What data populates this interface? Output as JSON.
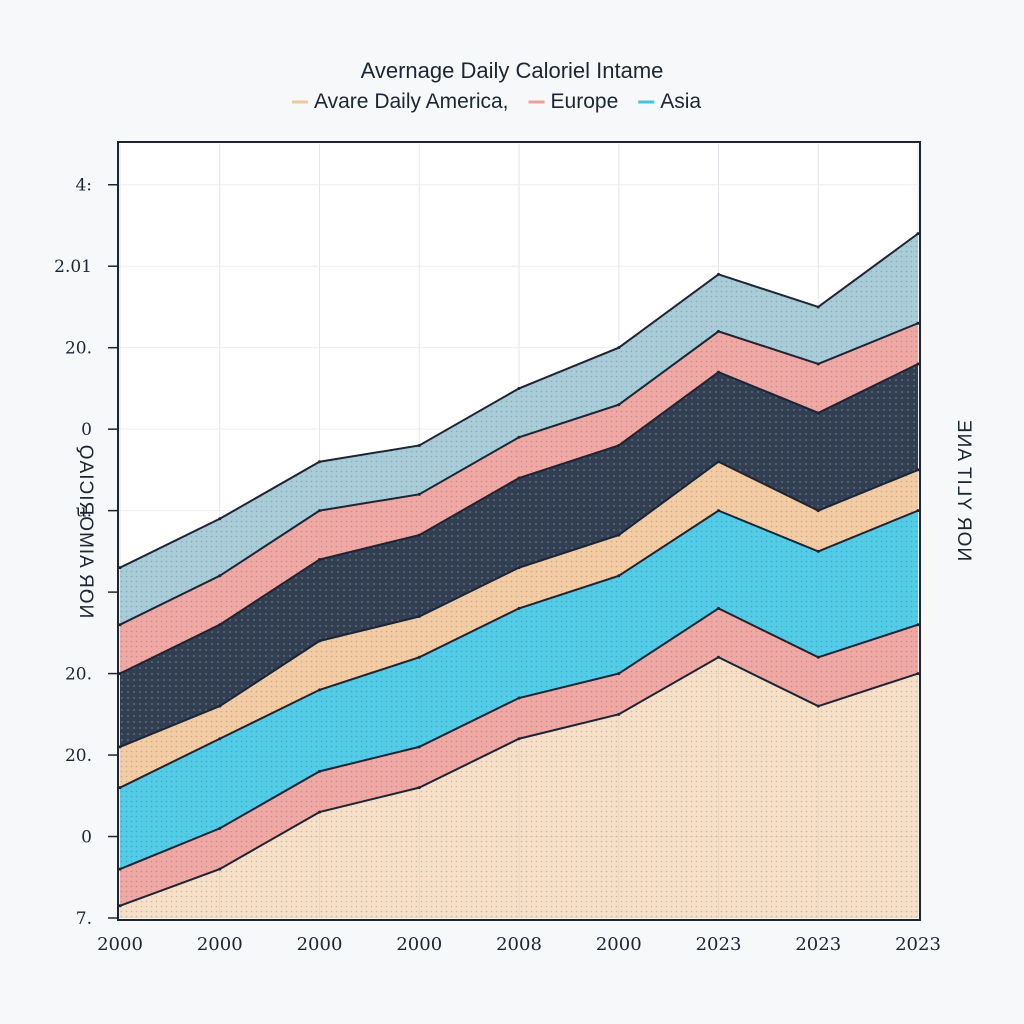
{
  "chart_data": {
    "type": "area",
    "title": "Avernage Daily Caloriel Intame",
    "legend": {
      "placement": "top",
      "entries": [
        {
          "label": "Avare Daily America,",
          "color": "#f2c79a"
        },
        {
          "label": "Europe",
          "color": "#ee9f9a"
        },
        {
          "label": "Asia",
          "color": "#3fc6e4"
        }
      ]
    },
    "ylabel": "NOR AIMORICIAQ",
    "ylabel_right": "NOR YLIT ANE",
    "y_tick_labels": [
      "4:",
      "2.01",
      "20.",
      "0",
      "u.",
      "·",
      "20.",
      "20.",
      "0",
      "7."
    ],
    "y_tick_values": [
      9,
      8,
      7,
      6,
      5,
      4,
      3,
      2,
      1,
      0
    ],
    "ylim": [
      0,
      9.5
    ],
    "x_tick_labels": [
      "2000",
      "2000",
      "2000",
      "2000",
      "2008",
      "2000",
      "2023",
      "2023",
      "2023"
    ],
    "x": [
      0,
      1,
      2,
      3,
      4,
      5,
      6,
      7,
      8
    ],
    "grid": true,
    "series": [
      {
        "color": "#f2c79a",
        "values": [
          0.15,
          0.6,
          1.3,
          1.6,
          2.2,
          2.5,
          3.2,
          2.6,
          3.0
        ]
      },
      {
        "color": "#ee9f9a",
        "values": [
          0.6,
          1.1,
          1.8,
          2.1,
          2.7,
          3.0,
          3.8,
          3.2,
          3.6
        ]
      },
      {
        "color": "#3fc6e4",
        "values": [
          1.6,
          2.2,
          2.8,
          3.2,
          3.8,
          4.2,
          5.0,
          4.5,
          5.0
        ]
      },
      {
        "color": "#f2c79a",
        "values": [
          2.1,
          2.6,
          3.4,
          3.7,
          4.3,
          4.7,
          5.6,
          5.0,
          5.5
        ]
      },
      {
        "color": "#1c2a40",
        "values": [
          3.0,
          3.6,
          4.4,
          4.7,
          5.4,
          5.8,
          6.7,
          6.2,
          6.8
        ]
      },
      {
        "color": "#ee9f9a",
        "values": [
          3.6,
          4.2,
          5.0,
          5.2,
          5.9,
          6.3,
          7.2,
          6.8,
          7.3
        ]
      },
      {
        "color": "#9fc6d4",
        "values": [
          4.3,
          4.9,
          5.6,
          5.8,
          6.5,
          7.0,
          7.9,
          7.5,
          8.4
        ]
      }
    ]
  }
}
